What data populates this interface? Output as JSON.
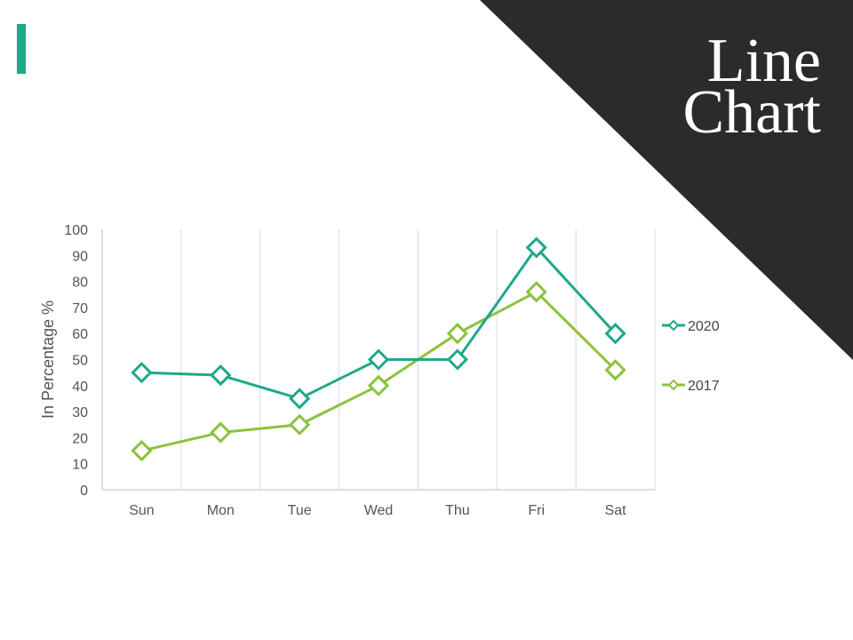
{
  "slide": {
    "title_line1": "Line",
    "title_line2": "Chart",
    "accent_color": "#1fa88a",
    "corner_color": "#2b2b2b"
  },
  "chart_data": {
    "type": "line",
    "categories": [
      "Sun",
      "Mon",
      "Tue",
      "Wed",
      "Thu",
      "Fri",
      "Sat"
    ],
    "series": [
      {
        "name": "2020",
        "values": [
          45,
          44,
          35,
          50,
          50,
          93,
          60
        ],
        "color": "#1fa88a"
      },
      {
        "name": "2017",
        "values": [
          15,
          22,
          25,
          40,
          60,
          76,
          46
        ],
        "color": "#8dc13f"
      }
    ],
    "ylabel": "In Percentage %",
    "ylim": [
      0,
      100
    ],
    "yticks": [
      0,
      10,
      20,
      30,
      40,
      50,
      60,
      70,
      80,
      90,
      100
    ],
    "grid": "vertical",
    "legend_position": "right",
    "marker": "diamond"
  }
}
